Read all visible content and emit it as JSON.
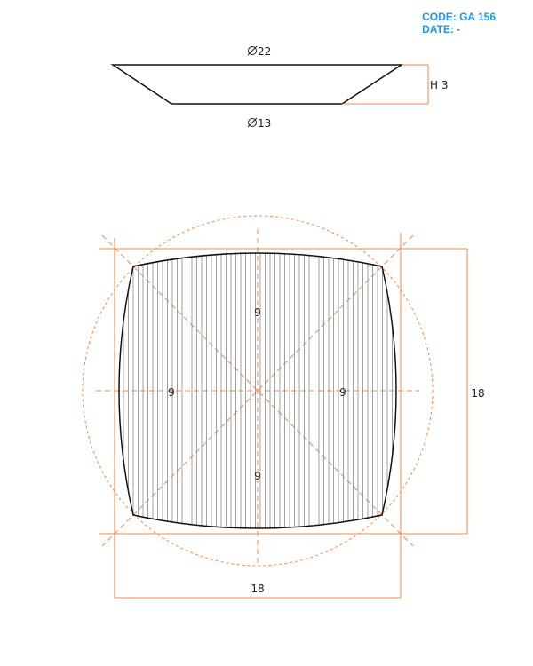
{
  "header": {
    "code": "CODE: GA 156",
    "date": "DATE: -",
    "color": "#1e9be0"
  },
  "profile_view": {
    "top_diameter": "22",
    "bottom_diameter": "13",
    "height_label": "H 3"
  },
  "plan_view": {
    "width_label": "18",
    "height_label": "18",
    "label_top": "9",
    "label_left": "9",
    "label_right": "9",
    "label_bottom": "9"
  },
  "colors": {
    "outline": "#111111",
    "dimension": "#f28a4a",
    "hatch": "#8a8a8a"
  }
}
